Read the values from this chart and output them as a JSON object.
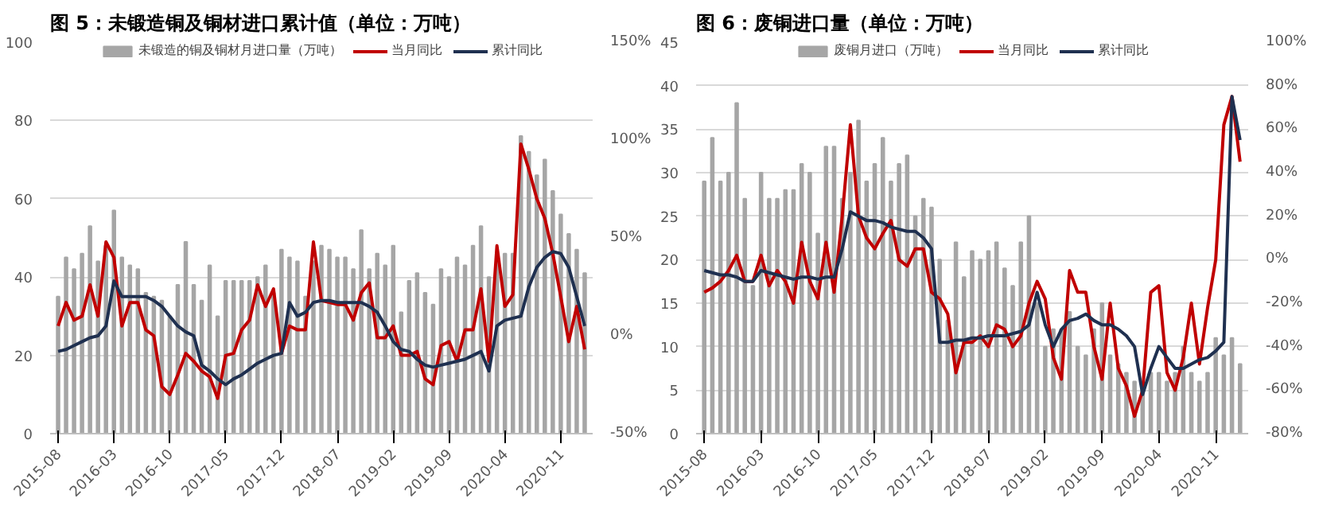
{
  "chart_data": [
    {
      "type": "bar",
      "title": "图 5：未锻造铜及铜材进口累计值（单位：万吨）",
      "x": [
        "2015-08",
        "2015-09",
        "2015-10",
        "2015-11",
        "2015-12",
        "2016-01",
        "2016-02",
        "2016-03",
        "2016-04",
        "2016-05",
        "2016-06",
        "2016-07",
        "2016-08",
        "2016-09",
        "2016-10",
        "2016-11",
        "2016-12",
        "2017-01",
        "2017-02",
        "2017-03",
        "2017-04",
        "2017-05",
        "2017-06",
        "2017-07",
        "2017-08",
        "2017-09",
        "2017-10",
        "2017-11",
        "2017-12",
        "2018-01",
        "2018-02",
        "2018-03",
        "2018-04",
        "2018-05",
        "2018-06",
        "2018-07",
        "2018-08",
        "2018-09",
        "2018-10",
        "2018-11",
        "2018-12",
        "2019-01",
        "2019-02",
        "2019-03",
        "2019-04",
        "2019-05",
        "2019-06",
        "2019-07",
        "2019-08",
        "2019-09",
        "2019-10",
        "2019-11",
        "2019-12",
        "2020-01",
        "2020-02",
        "2020-03",
        "2020-04",
        "2020-05",
        "2020-06",
        "2020-07",
        "2020-08",
        "2020-09",
        "2020-10",
        "2020-11",
        "2020-12",
        "2021-01",
        "2021-02"
      ],
      "xlim": [
        "2015-07",
        "2021-03"
      ],
      "xticks": [
        "2015-08",
        "2016-03",
        "2016-10",
        "2017-05",
        "2017-12",
        "2018-07",
        "2019-02",
        "2019-09",
        "2020-04",
        "2020-11"
      ],
      "ylim": [
        0,
        100
      ],
      "yticks": [
        0,
        20,
        40,
        60,
        80,
        100
      ],
      "y2lim": [
        -50,
        150
      ],
      "y2ticks": [
        {
          "value": -50,
          "label": "-50%"
        },
        {
          "value": 0,
          "label": "0%"
        },
        {
          "value": 50,
          "label": "50%"
        },
        {
          "value": 100,
          "label": "100%"
        },
        {
          "value": 150,
          "label": "150%"
        }
      ],
      "grid": "y",
      "legend": "top",
      "series": [
        {
          "name": "未锻造的铜及铜材月进口量（万吨）",
          "color": "#a6a6a6",
          "values": [
            35,
            45,
            42,
            46,
            53,
            44,
            48,
            57,
            45,
            43,
            42,
            36,
            35,
            34,
            30,
            38,
            49,
            38,
            34,
            43,
            30,
            39,
            39,
            39,
            39,
            40,
            43,
            36,
            47,
            45,
            44,
            35,
            44,
            48,
            47,
            45,
            45,
            42,
            52,
            42,
            46,
            43,
            48,
            31,
            39,
            41,
            36,
            33,
            42,
            40,
            45,
            43,
            48,
            53,
            40,
            44,
            46,
            46,
            76,
            72,
            66,
            70,
            62,
            56,
            51,
            47,
            41
          ]
        },
        {
          "name": "当月同比",
          "type": "line",
          "axis": "y2",
          "color": "#c00000",
          "values": [
            5,
            17,
            8,
            10,
            26,
            10,
            48,
            40,
            5,
            17,
            17,
            3,
            0,
            -26,
            -30,
            -20,
            -9,
            -13,
            -18,
            -21,
            -32,
            -10,
            -9,
            3,
            8,
            26,
            15,
            24,
            -9,
            5,
            3,
            3,
            48,
            18,
            17,
            16,
            16,
            8,
            22,
            27,
            -1,
            -1,
            5,
            -10,
            -10,
            -8,
            -22,
            -25,
            -5,
            -3,
            -13,
            3,
            3,
            24,
            -13,
            46,
            15,
            21,
            98,
            85,
            70,
            60,
            42,
            20,
            -3,
            15,
            -7
          ]
        },
        {
          "name": "累计同比",
          "type": "line",
          "axis": "y2",
          "color": "#1f3050",
          "values": [
            -8,
            -7,
            -5,
            -3,
            -1,
            0,
            5,
            28,
            20,
            20,
            20,
            20,
            18,
            15,
            10,
            5,
            2,
            0,
            -15,
            -18,
            -22,
            -25,
            -22,
            -20,
            -17,
            -14,
            -12,
            -10,
            -9,
            17,
            10,
            12,
            17,
            18,
            18,
            17,
            17,
            17,
            17,
            15,
            12,
            5,
            -3,
            -7,
            -8,
            -12,
            -15,
            -16,
            -15,
            -14,
            -13,
            -12,
            -10,
            -8,
            -18,
            5,
            8,
            9,
            10,
            25,
            35,
            40,
            43,
            42,
            35,
            20,
            5
          ]
        }
      ]
    },
    {
      "type": "bar",
      "title": "图 6：废铜进口量（单位：万吨）",
      "x": [
        "2015-08",
        "2015-09",
        "2015-10",
        "2015-11",
        "2015-12",
        "2016-01",
        "2016-02",
        "2016-03",
        "2016-04",
        "2016-05",
        "2016-06",
        "2016-07",
        "2016-08",
        "2016-09",
        "2016-10",
        "2016-11",
        "2016-12",
        "2017-01",
        "2017-02",
        "2017-03",
        "2017-04",
        "2017-05",
        "2017-06",
        "2017-07",
        "2017-08",
        "2017-09",
        "2017-10",
        "2017-11",
        "2017-12",
        "2018-01",
        "2018-02",
        "2018-03",
        "2018-04",
        "2018-05",
        "2018-06",
        "2018-07",
        "2018-08",
        "2018-09",
        "2018-10",
        "2018-11",
        "2018-12",
        "2019-01",
        "2019-02",
        "2019-03",
        "2019-04",
        "2019-05",
        "2019-06",
        "2019-07",
        "2019-08",
        "2019-09",
        "2019-10",
        "2019-11",
        "2019-12",
        "2020-01",
        "2020-02",
        "2020-03",
        "2020-04",
        "2020-05",
        "2020-06",
        "2020-07",
        "2020-08",
        "2020-09",
        "2020-10",
        "2020-11",
        "2020-12",
        "2021-01",
        "2021-02"
      ],
      "xlim": [
        "2015-07",
        "2021-03"
      ],
      "xticks": [
        "2015-08",
        "2016-03",
        "2016-10",
        "2017-05",
        "2017-12",
        "2018-07",
        "2019-02",
        "2019-09",
        "2020-04",
        "2020-11"
      ],
      "ylim": [
        0,
        45
      ],
      "yticks": [
        0,
        5,
        10,
        15,
        20,
        25,
        30,
        35,
        40,
        45
      ],
      "y2lim": [
        -80,
        100
      ],
      "y2ticks": [
        {
          "value": -80,
          "label": "-80%"
        },
        {
          "value": -60,
          "label": "-60%"
        },
        {
          "value": -40,
          "label": "-40%"
        },
        {
          "value": -20,
          "label": "-20%"
        },
        {
          "value": 0,
          "label": "0%"
        },
        {
          "value": 20,
          "label": "20%"
        },
        {
          "value": 40,
          "label": "40%"
        },
        {
          "value": 60,
          "label": "60%"
        },
        {
          "value": 80,
          "label": "80%"
        },
        {
          "value": 100,
          "label": "100%"
        }
      ],
      "grid": "y",
      "legend": "top",
      "series": [
        {
          "name": "废铜月进口（万吨）",
          "color": "#a6a6a6",
          "values": [
            29,
            34,
            29,
            30,
            38,
            27,
            17,
            30,
            27,
            27,
            28,
            28,
            31,
            30,
            23,
            33,
            33,
            27,
            30,
            36,
            29,
            31,
            34,
            29,
            31,
            32,
            25,
            27,
            26,
            20,
            13,
            22,
            18,
            21,
            20,
            21,
            22,
            19,
            17,
            22,
            25,
            15,
            10,
            12,
            12,
            14,
            10,
            9,
            12,
            15,
            9,
            8,
            7,
            6,
            6,
            7,
            7,
            6,
            7,
            10,
            7,
            6,
            7,
            11,
            9,
            11,
            8
          ]
        },
        {
          "name": "当月同比",
          "type": "line",
          "axis": "y2",
          "color": "#c00000",
          "values": [
            -15,
            -13,
            -10,
            -5,
            2,
            -10,
            -10,
            2,
            -12,
            -5,
            -10,
            -20,
            8,
            -10,
            -18,
            8,
            -15,
            20,
            62,
            20,
            10,
            5,
            12,
            18,
            0,
            -3,
            5,
            5,
            -15,
            -18,
            -25,
            -52,
            -38,
            -38,
            -35,
            -40,
            -30,
            -32,
            -40,
            -35,
            -20,
            -10,
            -18,
            -45,
            -55,
            -5,
            -15,
            -15,
            -40,
            -55,
            -20,
            -50,
            -58,
            -72,
            -60,
            -15,
            -12,
            -52,
            -60,
            -45,
            -20,
            -48,
            -22,
            0,
            62,
            75,
            45
          ]
        },
        {
          "name": "累计同比",
          "type": "line",
          "axis": "y2",
          "color": "#1f3050",
          "values": [
            -5,
            -6,
            -7,
            -7,
            -8,
            -10,
            -10,
            -5,
            -6,
            -7,
            -8,
            -9,
            -8,
            -8,
            -9,
            -8,
            -8,
            5,
            22,
            20,
            18,
            18,
            17,
            15,
            14,
            13,
            13,
            10,
            5,
            -38,
            -38,
            -37,
            -37,
            -36,
            -36,
            -35,
            -35,
            -35,
            -34,
            -33,
            -30,
            -15,
            -30,
            -40,
            -32,
            -28,
            -27,
            -25,
            -28,
            -30,
            -30,
            -32,
            -35,
            -40,
            -62,
            -50,
            -40,
            -45,
            -50,
            -50,
            -48,
            -46,
            -45,
            -42,
            -38,
            75,
            55
          ]
        }
      ]
    }
  ]
}
